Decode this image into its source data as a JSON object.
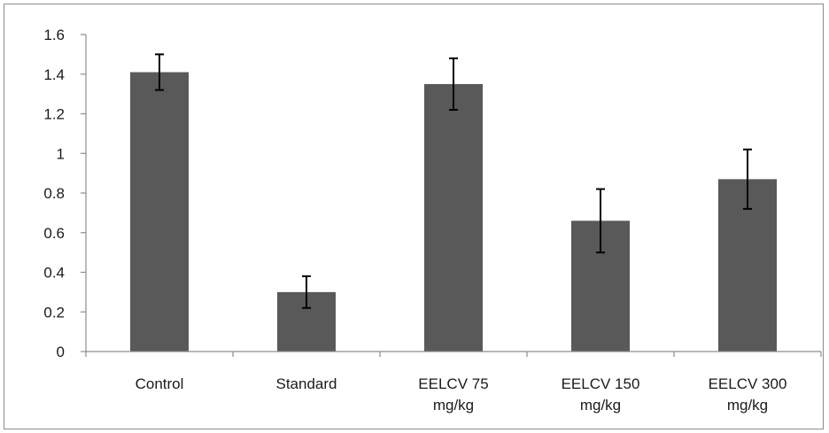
{
  "chart_data": {
    "type": "bar",
    "title": "",
    "xlabel": "",
    "ylabel": "",
    "ylim": [
      0,
      1.6
    ],
    "yticks": [
      "0",
      "0.2",
      "0.4",
      "0.6",
      "0.8",
      "1",
      "1.2",
      "1.4",
      "1.6"
    ],
    "categories": [
      [
        "Control"
      ],
      [
        "Standard"
      ],
      [
        "EELCV 75",
        "mg/kg"
      ],
      [
        "EELCV 150",
        "mg/kg"
      ],
      [
        "EELCV 300",
        "mg/kg"
      ]
    ],
    "series": [
      {
        "values": [
          1.41,
          0.3,
          1.35,
          0.66,
          0.87
        ],
        "error": [
          0.09,
          0.08,
          0.13,
          0.16,
          0.15
        ]
      }
    ],
    "bar_color": "#595959",
    "grid": false,
    "legend": "none"
  }
}
